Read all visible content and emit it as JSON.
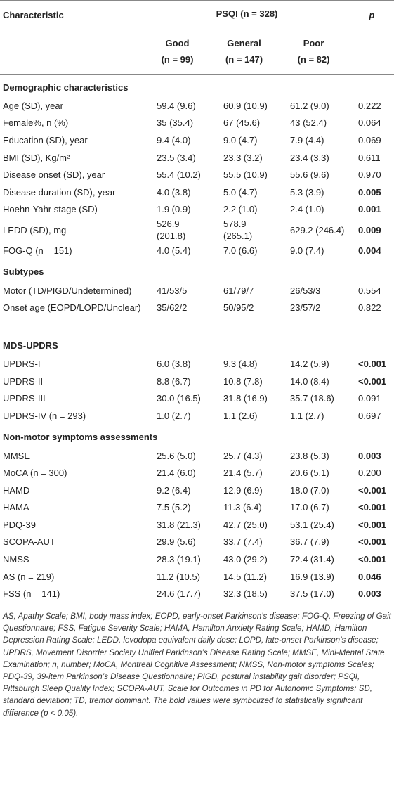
{
  "table": {
    "header": {
      "characteristic": "Characteristic",
      "group": "PSQI (n = 328)",
      "p": "p",
      "columns": [
        [
          "Good",
          "(n = 99)"
        ],
        [
          "General",
          "(n = 147)"
        ],
        [
          "Poor",
          "(n = 82)"
        ]
      ]
    },
    "sections": [
      {
        "title": "Demographic characteristics",
        "rows": [
          {
            "label": "Age (SD), year",
            "cells": [
              "59.4 (9.6)",
              "60.9 (10.9)",
              "61.2 (9.0)",
              "0.222"
            ],
            "significant": false
          },
          {
            "label": "Female%, n (%)",
            "cells": [
              "35 (35.4)",
              "67 (45.6)",
              "43 (52.4)",
              "0.064"
            ],
            "significant": false
          },
          {
            "label": "Education (SD), year",
            "cells": [
              "9.4 (4.0)",
              "9.0 (4.7)",
              "7.9 (4.4)",
              "0.069"
            ],
            "significant": false
          },
          {
            "label": "BMI (SD), Kg/m²",
            "cells": [
              "23.5 (3.4)",
              "23.3 (3.2)",
              "23.4 (3.3)",
              "0.611"
            ],
            "significant": false
          },
          {
            "label": "Disease onset (SD), year",
            "cells": [
              "55.4 (10.2)",
              "55.5 (10.9)",
              "55.6 (9.6)",
              "0.970"
            ],
            "significant": false
          },
          {
            "label": "Disease duration (SD), year",
            "cells": [
              "4.0 (3.8)",
              "5.0 (4.7)",
              "5.3 (3.9)",
              "0.005"
            ],
            "significant": true
          },
          {
            "label": "Hoehn-Yahr stage (SD)",
            "cells": [
              "1.9 (0.9)",
              "2.2 (1.0)",
              "2.4 (1.0)",
              "0.001"
            ],
            "significant": true
          },
          {
            "label": "LEDD (SD), mg",
            "cells": [
              "526.9 (201.8)",
              "578.9 (265.1)",
              "629.2 (246.4)",
              "0.009"
            ],
            "significant": true
          },
          {
            "label": "FOG-Q (n = 151)",
            "cells": [
              "4.0 (5.4)",
              "7.0 (6.6)",
              "9.0 (7.4)",
              "0.004"
            ],
            "significant": true
          }
        ]
      },
      {
        "title": "Subtypes",
        "rows": [
          {
            "label": "Motor (TD/PIGD/Undetermined)",
            "cells": [
              "41/53/5",
              "61/79/7",
              "26/53/3",
              "0.554"
            ],
            "significant": false
          },
          {
            "label": "Onset age (EOPD/LOPD/Unclear)",
            "cells": [
              "35/62/2",
              "50/95/2",
              "23/57/2",
              "0.822"
            ],
            "significant": false
          }
        ]
      },
      {
        "title": "MDS-UPDRS",
        "rows": [
          {
            "label": "UPDRS-I",
            "cells": [
              "6.0 (3.8)",
              "9.3 (4.8)",
              "14.2 (5.9)",
              "<0.001"
            ],
            "significant": true
          },
          {
            "label": "UPDRS-II",
            "cells": [
              "8.8 (6.7)",
              "10.8 (7.8)",
              "14.0 (8.4)",
              "<0.001"
            ],
            "significant": true
          },
          {
            "label": "UPDRS-III",
            "cells": [
              "30.0 (16.5)",
              "31.8 (16.9)",
              "35.7 (18.6)",
              "0.091"
            ],
            "significant": false
          },
          {
            "label": "UPDRS-IV (n = 293)",
            "cells": [
              "1.0 (2.7)",
              "1.1 (2.6)",
              "1.1 (2.7)",
              "0.697"
            ],
            "significant": false
          }
        ]
      },
      {
        "title": "Non-motor symptoms assessments",
        "rows": [
          {
            "label": "MMSE",
            "cells": [
              "25.6 (5.0)",
              "25.7 (4.3)",
              "23.8 (5.3)",
              "0.003"
            ],
            "significant": true
          },
          {
            "label": "MoCA (n = 300)",
            "cells": [
              "21.4 (6.0)",
              "21.4 (5.7)",
              "20.6 (5.1)",
              "0.200"
            ],
            "significant": false
          },
          {
            "label": "HAMD",
            "cells": [
              "9.2 (6.4)",
              "12.9 (6.9)",
              "18.0 (7.0)",
              "<0.001"
            ],
            "significant": true
          },
          {
            "label": "HAMA",
            "cells": [
              "7.5 (5.2)",
              "11.3 (6.4)",
              "17.0 (6.7)",
              "<0.001"
            ],
            "significant": true
          },
          {
            "label": "PDQ-39",
            "cells": [
              "31.8 (21.3)",
              "42.7 (25.0)",
              "53.1 (25.4)",
              "<0.001"
            ],
            "significant": true
          },
          {
            "label": "SCOPA-AUT",
            "cells": [
              "29.9 (5.6)",
              "33.7 (7.4)",
              "36.7 (7.9)",
              "<0.001"
            ],
            "significant": true
          },
          {
            "label": "NMSS",
            "cells": [
              "28.3 (19.1)",
              "43.0 (29.2)",
              "72.4 (31.4)",
              "<0.001"
            ],
            "significant": true
          },
          {
            "label": "AS (n = 219)",
            "cells": [
              "11.2 (10.5)",
              "14.5 (11.2)",
              "16.9 (13.9)",
              "0.046"
            ],
            "significant": true
          },
          {
            "label": "FSS (n = 141)",
            "cells": [
              "24.6 (17.7)",
              "32.3 (18.5)",
              "37.5 (17.0)",
              "0.003"
            ],
            "significant": true
          }
        ]
      }
    ],
    "footnote": "AS, Apathy Scale; BMI, body mass index; EOPD, early-onset Parkinson’s disease; FOG-Q, Freezing of Gait Questionnaire; FSS, Fatigue Severity Scale; HAMA, Hamilton Anxiety Rating Scale; HAMD, Hamilton Depression Rating Scale; LEDD, levodopa equivalent daily dose; LOPD, late-onset Parkinson’s disease; UPDRS, Movement Disorder Society Unified Parkinson’s Disease Rating Scale; MMSE, Mini-Mental State Examination; n, number; MoCA, Montreal Cognitive Assessment; NMSS, Non-motor symptoms Scales; PDQ-39, 39-item Parkinson’s Disease Questionnaire; PIGD, postural instability gait disorder; PSQI, Pittsburgh Sleep Quality Index; SCOPA-AUT, Scale for Outcomes in PD for Autonomic Symptoms; SD, standard deviation; TD, tremor dominant. The bold values were symbolized to statistically significant difference (p < 0.05)."
  }
}
